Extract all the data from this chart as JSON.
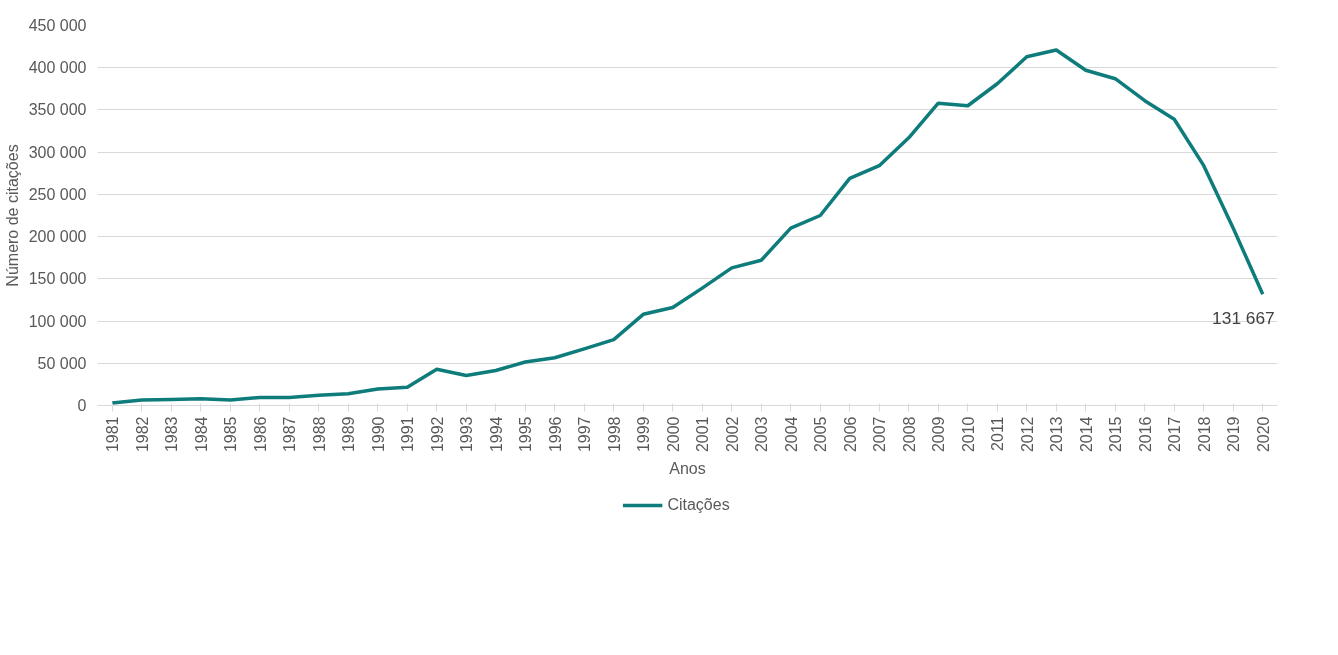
{
  "chart_data": {
    "type": "line",
    "xlabel": "Anos",
    "ylabel": "Número de citações",
    "categories": [
      "1981",
      "1982",
      "1983",
      "1984",
      "1985",
      "1986",
      "1987",
      "1988",
      "1989",
      "1990",
      "1991",
      "1992",
      "1993",
      "1994",
      "1995",
      "1996",
      "1997",
      "1998",
      "1999",
      "2000",
      "2001",
      "2002",
      "2003",
      "2004",
      "2005",
      "2006",
      "2007",
      "2008",
      "2009",
      "2010",
      "2011",
      "2012",
      "2013",
      "2014",
      "2015",
      "2016",
      "2017",
      "2018",
      "2019",
      "2020"
    ],
    "series": [
      {
        "name": "Citações",
        "color": "#0e7c7b",
        "values": [
          3000,
          6500,
          7000,
          8000,
          6500,
          9500,
          9500,
          12000,
          14000,
          19500,
          21500,
          43000,
          35500,
          41500,
          51500,
          56500,
          67000,
          78000,
          108000,
          116000,
          139000,
          163000,
          172000,
          210000,
          225000,
          269000,
          284000,
          317000,
          358000,
          355000,
          381000,
          413000,
          421000,
          397000,
          387000,
          361000,
          339000,
          284000,
          210000,
          131667
        ],
        "value_labels": [
          null,
          null,
          null,
          null,
          null,
          null,
          null,
          null,
          null,
          null,
          null,
          null,
          null,
          null,
          null,
          null,
          null,
          null,
          null,
          null,
          null,
          null,
          null,
          null,
          null,
          null,
          null,
          null,
          null,
          null,
          null,
          null,
          null,
          null,
          null,
          null,
          null,
          null,
          null,
          "131 667"
        ]
      }
    ],
    "ylim": [
      0,
      450000
    ],
    "yticks": [
      0,
      {
        "value": 50000,
        "label": "50 000"
      },
      {
        "value": 100000,
        "label": "100 000"
      },
      {
        "value": 150000,
        "label": "150 000"
      },
      {
        "value": 200000,
        "label": "200 000"
      },
      {
        "value": 250000,
        "label": "250 000"
      },
      {
        "value": 300000,
        "label": "300 000"
      },
      {
        "value": 350000,
        "label": "350 000"
      },
      {
        "value": 400000,
        "label": "400 000"
      },
      {
        "value": 450000,
        "label": "450 000"
      }
    ],
    "grid": "y",
    "legend": "bottom",
    "line_style": "solid"
  }
}
